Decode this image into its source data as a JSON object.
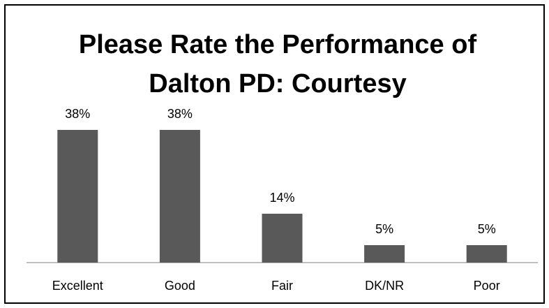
{
  "chart_data": {
    "type": "bar",
    "title": "Please Rate the Performance of Dalton PD: Courtesy",
    "categories": [
      "Excellent",
      "Good",
      "Fair",
      "DK/NR",
      "Poor"
    ],
    "values": [
      38,
      38,
      14,
      5,
      5
    ],
    "value_labels": [
      "38%",
      "38%",
      "14%",
      "5%",
      "5%"
    ],
    "color": "#595959"
  }
}
